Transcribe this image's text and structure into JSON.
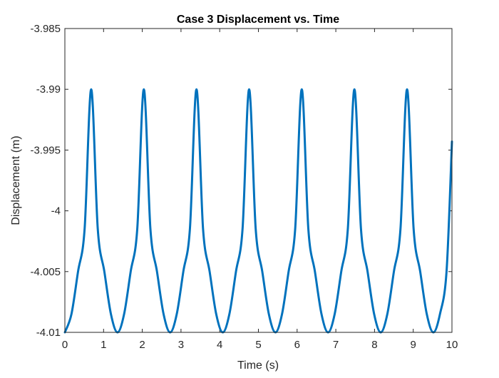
{
  "chart_data": {
    "type": "line",
    "title": "Case 3 Displacement vs. Time",
    "xlabel": "Time (s)",
    "ylabel": "Displacement (m)",
    "xlim": [
      0,
      10
    ],
    "ylim": [
      -4.01,
      -3.985
    ],
    "x_ticks": [
      0,
      1,
      2,
      3,
      4,
      5,
      6,
      7,
      8,
      9,
      10
    ],
    "x_tick_labels": [
      "0",
      "1",
      "2",
      "3",
      "4",
      "5",
      "6",
      "7",
      "8",
      "9",
      "10"
    ],
    "y_ticks": [
      -4.01,
      -4.005,
      -4,
      -3.995,
      -3.99,
      -3.985
    ],
    "y_tick_labels": [
      "-4.01",
      "-4.005",
      "-4",
      "-3.995",
      "-3.99",
      "-3.985"
    ],
    "grid": false,
    "series": [
      {
        "color": "#0072BD",
        "line_width": 3,
        "x": [
          0,
          0.17,
          0.34,
          0.51,
          0.68,
          0.85,
          1.02,
          1.19,
          1.36,
          1.53,
          1.7,
          1.87,
          2.04,
          2.21,
          2.38,
          2.55,
          2.72,
          2.89,
          3.06,
          3.23,
          3.4,
          3.57,
          3.74,
          3.91,
          4.08,
          4.25,
          4.42,
          4.59,
          4.76,
          4.93,
          5.1,
          5.27,
          5.44,
          5.61,
          5.78,
          5.95,
          6.12,
          6.29,
          6.46,
          6.63,
          6.8,
          6.97,
          7.14,
          7.31,
          7.48,
          7.65,
          7.82,
          7.99,
          8.16,
          8.33,
          8.5,
          8.67,
          8.84,
          9.01,
          9.18,
          9.35,
          9.52,
          9.69,
          9.86,
          10
        ],
        "y": [
          -4.01,
          -4.0085,
          -4.005,
          -4.0015,
          -3.99,
          -4.0015,
          -4.005,
          -4.0085,
          -4.01,
          -4.0085,
          -4.005,
          -4.0015,
          -3.99,
          -4.0015,
          -4.005,
          -4.0085,
          -4.01,
          -4.0085,
          -4.005,
          -4.0015,
          -3.99,
          -4.0015,
          -4.005,
          -4.0085,
          -4.01,
          -4.0085,
          -4.005,
          -4.0015,
          -3.99,
          -4.0015,
          -4.005,
          -4.0085,
          -4.01,
          -4.0085,
          -4.005,
          -4.0015,
          -3.99,
          -4.0015,
          -4.005,
          -4.0085,
          -4.01,
          -4.0085,
          -4.005,
          -4.0015,
          -3.99,
          -4.0015,
          -4.005,
          -4.0085,
          -4.01,
          -4.0085,
          -4.005,
          -4.0015,
          -3.99,
          -4.0015,
          -4.005,
          -4.0085,
          -4.01,
          -4.0085,
          -4.005,
          -3.9943
        ]
      }
    ]
  }
}
